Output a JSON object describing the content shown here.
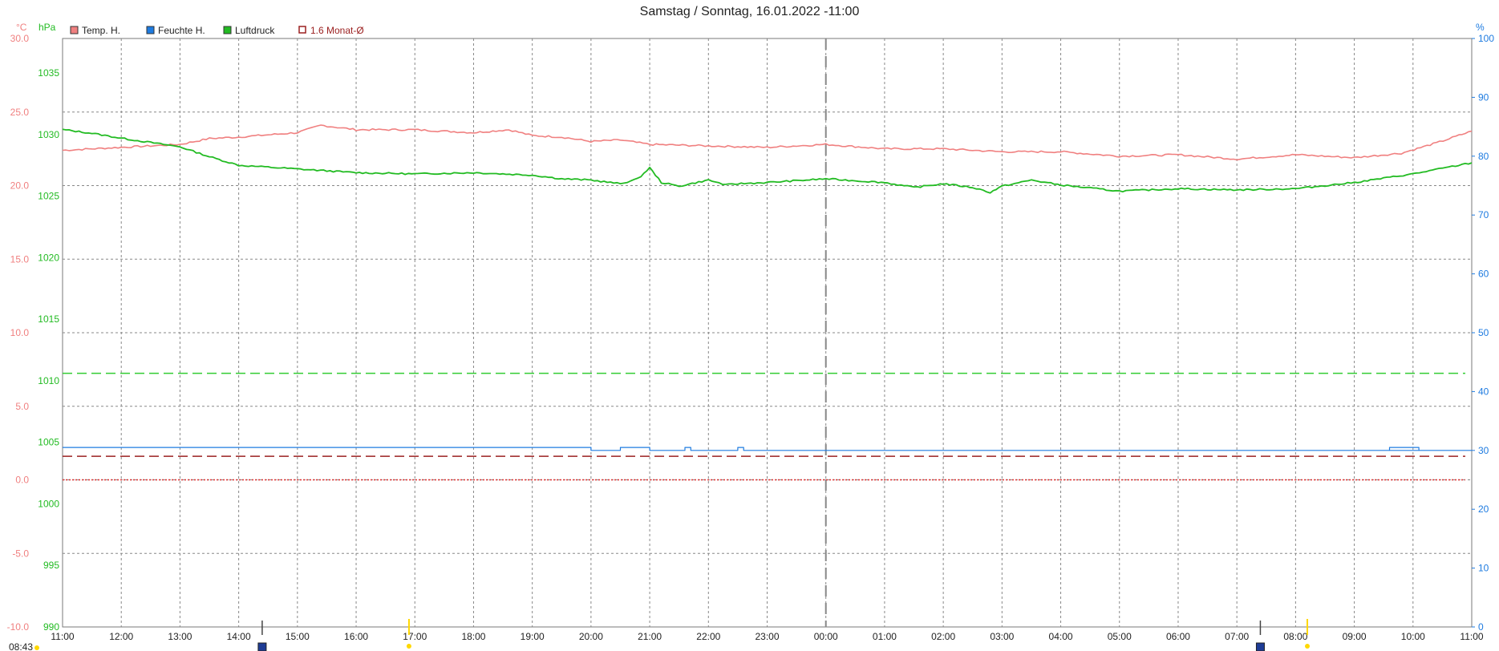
{
  "chart_data": {
    "type": "line",
    "title": "Samstag / Sonntag, 16.01.2022  -11:00",
    "units": {
      "temp": "°C",
      "pressure": "hPa",
      "humidity": "%"
    },
    "legend": [
      {
        "name": "Temp. H.",
        "color": "#f08080",
        "marker": "filled"
      },
      {
        "name": "Feuchte H.",
        "color": "#1e7be0",
        "marker": "filled"
      },
      {
        "name": "Luftdruck",
        "color": "#22bb22",
        "marker": "filled"
      },
      {
        "name": "1.6 Monat-Ø",
        "color": "#9b2020",
        "marker": "outline"
      }
    ],
    "legend_placement": "top-left",
    "x_ticks": [
      "11:00",
      "12:00",
      "13:00",
      "14:00",
      "15:00",
      "16:00",
      "17:00",
      "18:00",
      "19:00",
      "20:00",
      "21:00",
      "22:00",
      "23:00",
      "00:00",
      "01:00",
      "02:00",
      "03:00",
      "04:00",
      "05:00",
      "06:00",
      "07:00",
      "08:00",
      "09:00",
      "10:00",
      "11:00"
    ],
    "x_extra_labels": [
      {
        "text": "08:43",
        "hour": 0,
        "color": "#ffd800",
        "marker": "sun"
      }
    ],
    "x_events": [
      {
        "hour": 3.4,
        "type": "sunset-icon",
        "color": "#444444"
      },
      {
        "hour": 5.9,
        "type": "twilight",
        "color": "#ffd800"
      },
      {
        "hour": 20.4,
        "type": "sunrise-icon",
        "color": "#444444"
      },
      {
        "hour": 21.2,
        "type": "twilight",
        "color": "#ffd800"
      }
    ],
    "midnight_hour": 13,
    "temp_axis": {
      "ticks": [
        "30.0",
        "25.0",
        "20.0",
        "15.0",
        "10.0",
        "5.0",
        "0.0",
        "-5.0",
        "-10.0"
      ],
      "min": -10,
      "max": 30,
      "color": "#f08080"
    },
    "pressure_axis": {
      "ticks": [
        "1035",
        "1030",
        "1025",
        "1020",
        "1015",
        "1010",
        "1005",
        "1000",
        "995",
        "990"
      ],
      "min": 990,
      "max": 1037.8,
      "color": "#22bb22"
    },
    "humidity_axis": {
      "ticks": [
        "100",
        "90",
        "80",
        "70",
        "60",
        "50",
        "40",
        "30",
        "20",
        "10",
        "0"
      ],
      "min": 0,
      "max": 100,
      "color": "#1e7be0"
    },
    "grid": true,
    "reference_lines": [
      {
        "series": "Luftdruck",
        "label": "1.6 Monat-Ø",
        "value": 1010.6,
        "color": "#33cc33",
        "style": "dashed"
      },
      {
        "series": "Temp. H.",
        "label": "1.6 Monat-Ø",
        "value": 1.6,
        "color": "#9b2020",
        "style": "dashed"
      },
      {
        "series": "Temp. H.",
        "label": "0 °C",
        "value": 0,
        "color": "#e03030",
        "style": "dotted"
      }
    ],
    "series": [
      {
        "name": "Temp. H.",
        "axis": "temp",
        "x_hours": [
          0,
          1,
          2,
          2.5,
          3,
          4,
          4.4,
          5,
          6,
          7,
          7.6,
          8,
          8.5,
          9,
          9.5,
          10,
          11,
          12,
          13,
          14,
          15,
          16,
          17,
          18,
          19,
          20,
          21,
          22,
          22.8,
          23.4,
          24
        ],
        "values": [
          22.4,
          22.6,
          22.8,
          23.2,
          23.3,
          23.6,
          24.1,
          23.8,
          23.8,
          23.6,
          23.8,
          23.4,
          23.3,
          23.0,
          23.1,
          22.8,
          22.7,
          22.6,
          22.8,
          22.5,
          22.5,
          22.3,
          22.3,
          22.0,
          22.1,
          21.8,
          22.1,
          21.9,
          22.2,
          22.9,
          23.7
        ]
      },
      {
        "name": "Feuchte H.",
        "axis": "humidity",
        "x_hours": [
          0,
          8.9,
          9.0,
          9.4,
          9.5,
          9.9,
          10.0,
          10.5,
          10.6,
          10.7,
          11.4,
          11.5,
          11.6,
          24
        ],
        "values": [
          30.5,
          30.5,
          30,
          30,
          30.5,
          30.5,
          30,
          30,
          30.5,
          30,
          30,
          30.5,
          30,
          30
        ],
        "extra_steps": [
          {
            "from": 22.6,
            "to": 23.1,
            "value": 30.5
          }
        ]
      },
      {
        "name": "Luftdruck",
        "axis": "pressure",
        "x_hours": [
          0,
          0.5,
          1,
          2,
          2.5,
          3,
          4,
          5,
          6,
          7,
          8,
          8.5,
          9,
          9.5,
          9.8,
          10,
          10.2,
          10.5,
          11,
          11.3,
          11.5,
          12,
          13,
          14,
          14.5,
          15,
          15.5,
          15.8,
          16,
          16.5,
          17,
          18,
          19,
          20,
          21,
          22,
          23,
          24
        ],
        "values": [
          1030.4,
          1030.1,
          1029.7,
          1029.0,
          1028.2,
          1027.5,
          1027.2,
          1026.9,
          1026.8,
          1026.9,
          1026.7,
          1026.4,
          1026.3,
          1026.0,
          1026.4,
          1027.3,
          1026.1,
          1025.8,
          1026.3,
          1025.9,
          1026.0,
          1026.1,
          1026.4,
          1026.1,
          1025.7,
          1026.0,
          1025.7,
          1025.3,
          1025.8,
          1026.3,
          1025.9,
          1025.4,
          1025.6,
          1025.5,
          1025.6,
          1026.1,
          1026.8,
          1027.7
        ]
      }
    ]
  }
}
